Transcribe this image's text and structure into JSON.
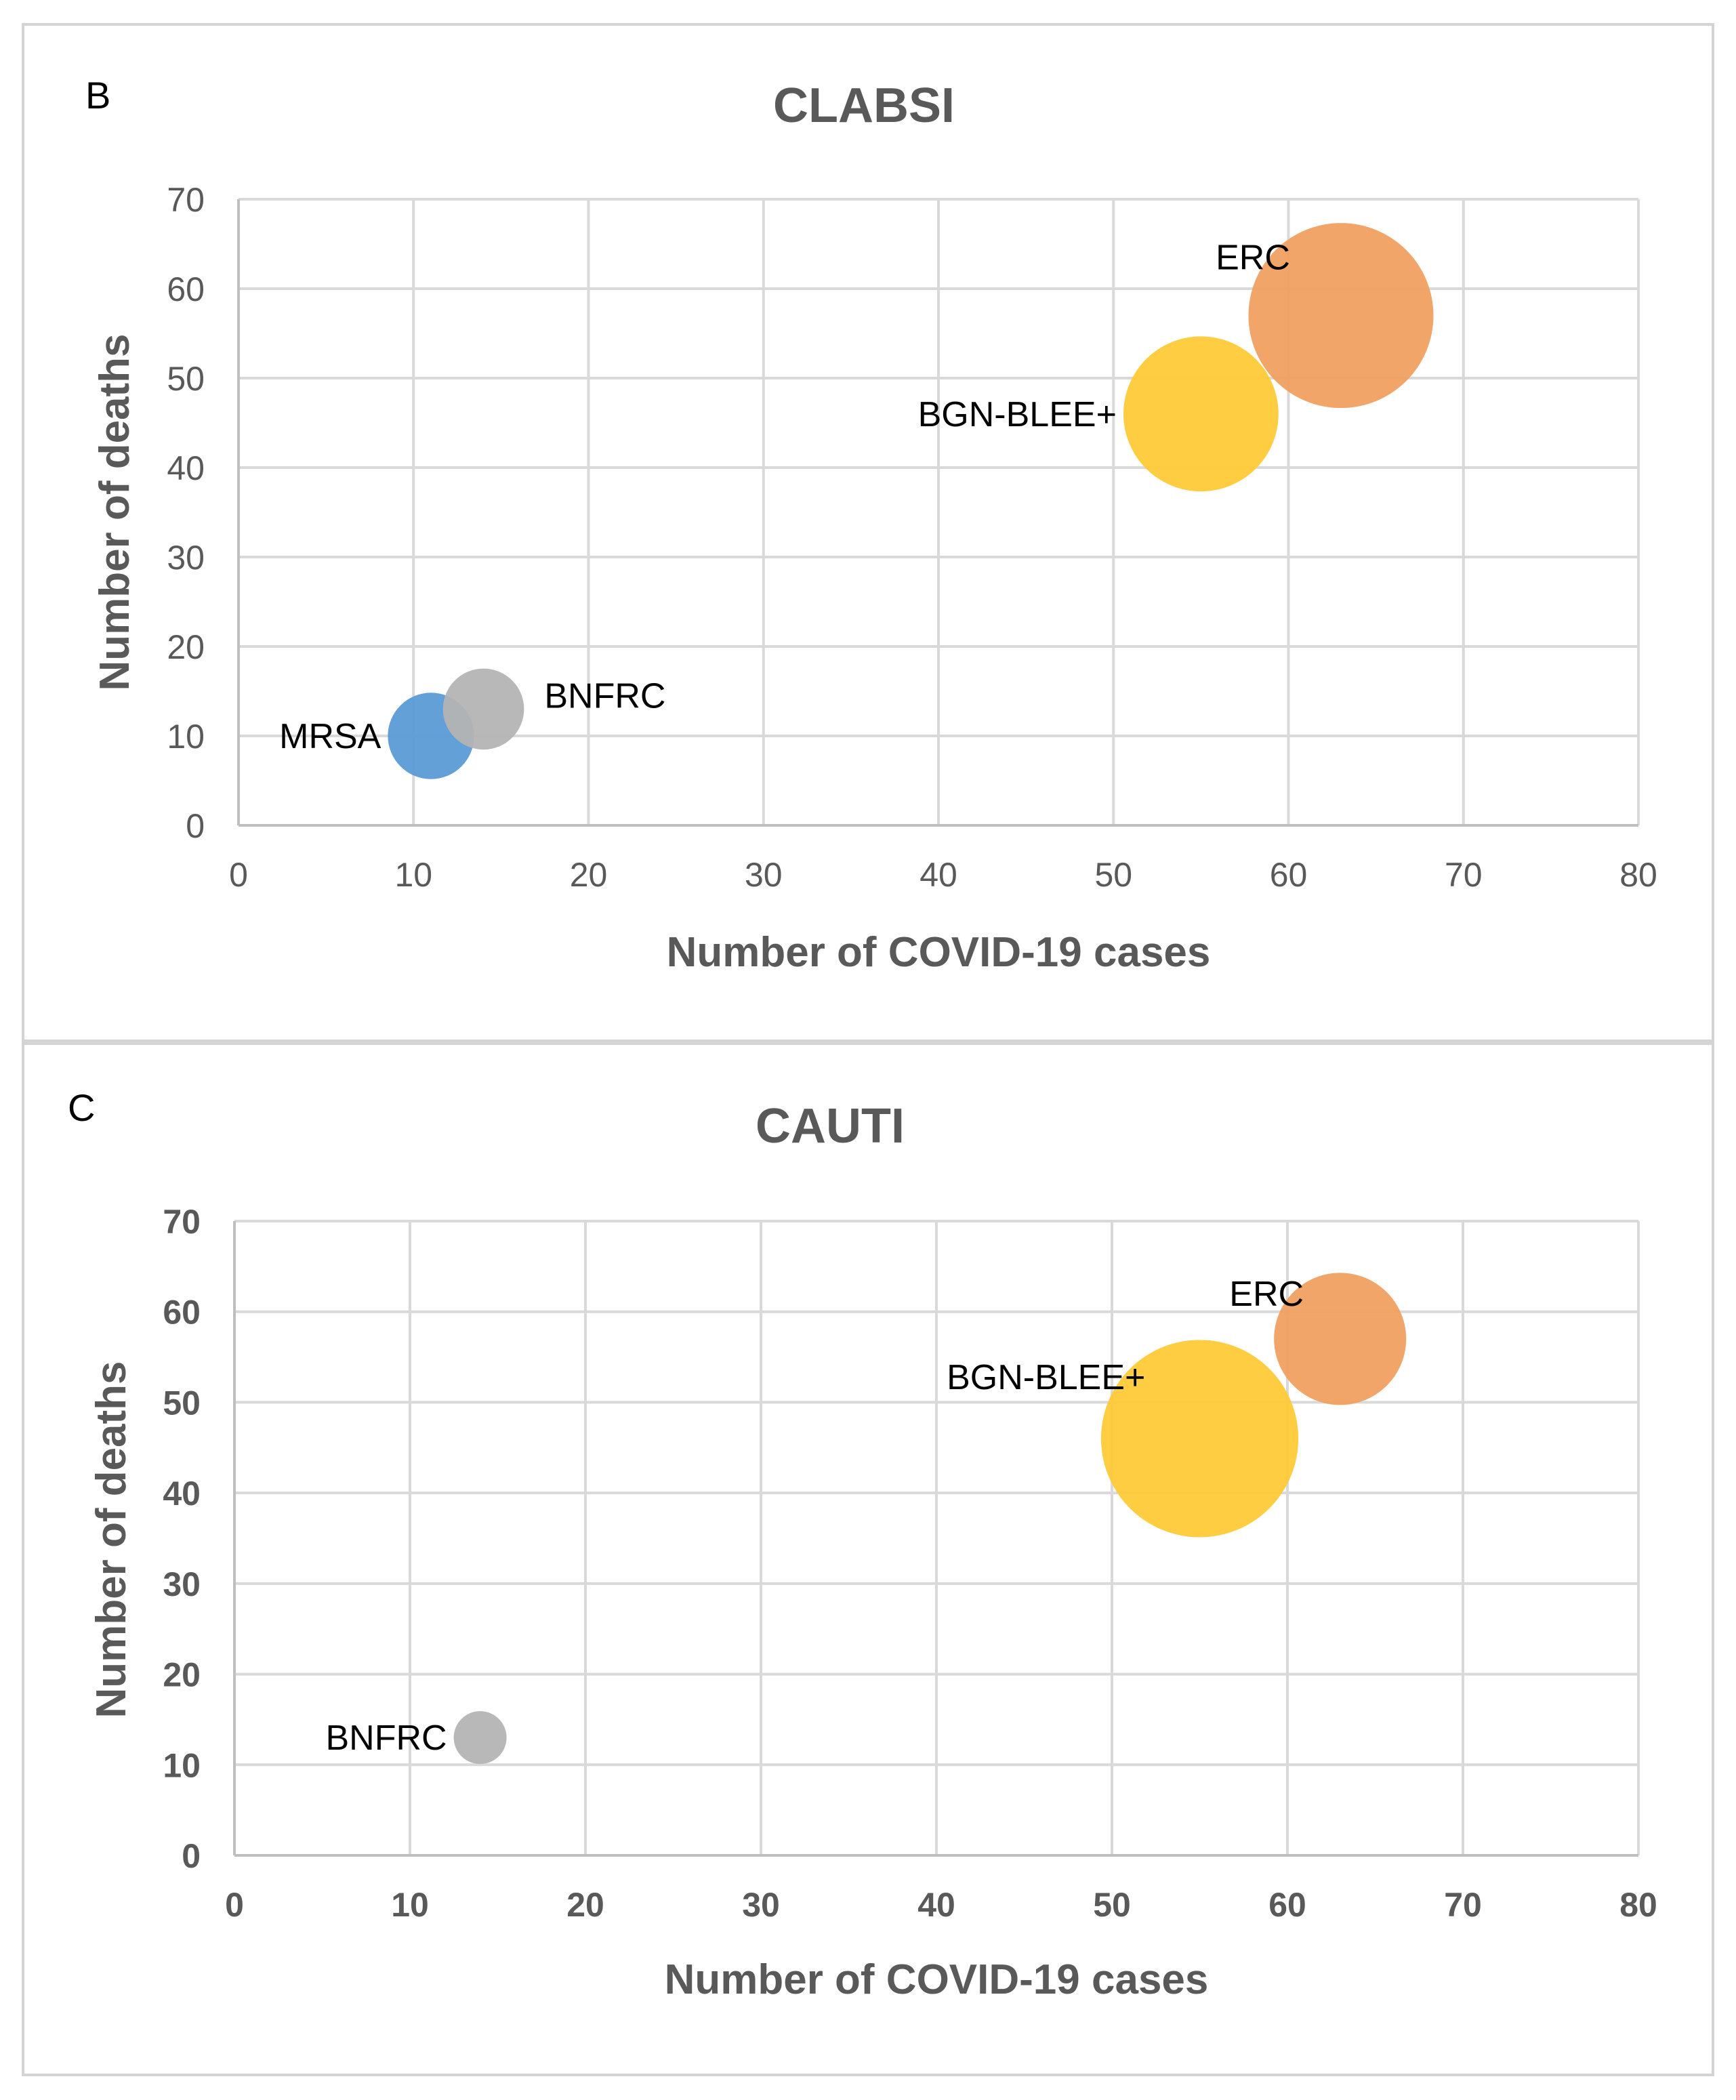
{
  "chart_data": [
    {
      "panel": "B",
      "type": "bubble",
      "title": "CLABSI",
      "xlabel": "Number of COVID-19 cases",
      "ylabel": "Number of deaths",
      "xlim": [
        0,
        80
      ],
      "ylim": [
        0,
        70
      ],
      "xticks": [
        "0",
        "10",
        "20",
        "30",
        "40",
        "50",
        "60",
        "70",
        "80"
      ],
      "yticks": [
        "0",
        "10",
        "20",
        "30",
        "40",
        "50",
        "60",
        "70"
      ],
      "grid": true,
      "bold_ticks": false,
      "series": [
        {
          "name": "ERC",
          "x": 63,
          "y": 57,
          "size": 10.5,
          "color": "#f0a060",
          "label_side": "left-top"
        },
        {
          "name": "BGN-BLEE+",
          "x": 55,
          "y": 46,
          "size": 8.8,
          "color": "#ffca38",
          "label_side": "left"
        },
        {
          "name": "BNFRC",
          "x": 14,
          "y": 13,
          "size": 4.6,
          "color": "#b4b4b4",
          "label_side": "right"
        },
        {
          "name": "MRSA",
          "x": 11,
          "y": 10,
          "size": 4.9,
          "color": "#5b9bd5",
          "label_side": "left"
        }
      ]
    },
    {
      "panel": "C",
      "type": "bubble",
      "title": "CAUTI",
      "xlabel": "Number of COVID-19 cases",
      "ylabel": "Number of deaths",
      "xlim": [
        0,
        80
      ],
      "ylim": [
        0,
        70
      ],
      "xticks": [
        "0",
        "10",
        "20",
        "30",
        "40",
        "50",
        "60",
        "70",
        "80"
      ],
      "yticks": [
        "0",
        "10",
        "20",
        "30",
        "40",
        "50",
        "60",
        "70"
      ],
      "grid": true,
      "bold_ticks": true,
      "series": [
        {
          "name": "ERC",
          "x": 63,
          "y": 57,
          "size": 7.5,
          "color": "#f0a060",
          "label_side": "left-top"
        },
        {
          "name": "BGN-BLEE+",
          "x": 55,
          "y": 46,
          "size": 11.2,
          "color": "#ffca38",
          "label_side": "left-top"
        },
        {
          "name": "BNFRC",
          "x": 14,
          "y": 13,
          "size": 3.0,
          "color": "#b4b4b4",
          "label_side": "left"
        }
      ]
    }
  ]
}
